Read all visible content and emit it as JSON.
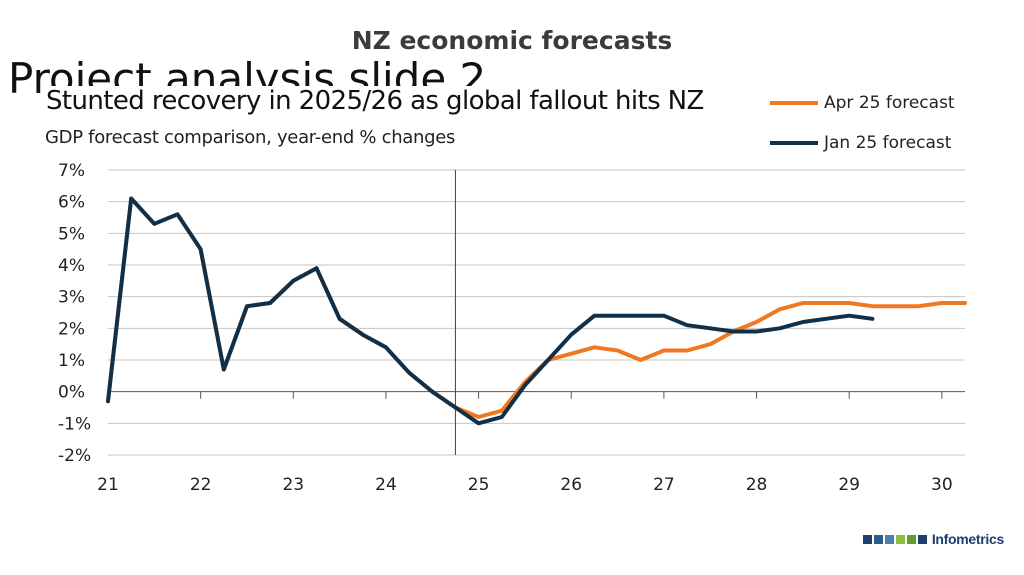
{
  "slide": {
    "heading": "NZ economic forecasts",
    "obscured_title": "Project analysis slide 2"
  },
  "brand": {
    "name": "Infometrics",
    "logo_colors": [
      "#1f3f6e",
      "#2d5d8f",
      "#4a7fb0",
      "#8dbd3a",
      "#5ea033",
      "#1f3f6e"
    ]
  },
  "chart_data": {
    "type": "line",
    "title": "Stunted recovery in 2025/26 as global fallout hits NZ",
    "subtitle": "GDP forecast comparison, year-end % changes",
    "xlabel": "",
    "ylabel": "",
    "ylim": [
      -2,
      7
    ],
    "xlim": [
      21,
      30.25
    ],
    "yticks": [
      "7%",
      "6%",
      "5%",
      "4%",
      "3%",
      "2%",
      "1%",
      "0%",
      "-1%",
      "-2%"
    ],
    "ytick_values": [
      7,
      6,
      5,
      4,
      3,
      2,
      1,
      0,
      -1,
      -2
    ],
    "xticks": [
      "21",
      "22",
      "23",
      "24",
      "25",
      "26",
      "27",
      "28",
      "29",
      "30"
    ],
    "xtick_values": [
      21,
      22,
      23,
      24,
      25,
      26,
      27,
      28,
      29,
      30
    ],
    "grid": true,
    "legend_position": "top-right",
    "marker_line_x": 24.75,
    "series": [
      {
        "name": "Apr 25 forecast",
        "color": "#f07820",
        "x": [
          21,
          21.25,
          21.5,
          21.75,
          22,
          22.25,
          22.5,
          22.75,
          23,
          23.25,
          23.5,
          23.75,
          24,
          24.25,
          24.5,
          24.75,
          25,
          25.25,
          25.5,
          25.75,
          26,
          26.25,
          26.5,
          26.75,
          27,
          27.25,
          27.5,
          27.75,
          28,
          28.25,
          28.5,
          28.75,
          29,
          29.25,
          29.5,
          29.75,
          30,
          30.25
        ],
        "values": [
          -0.3,
          6.1,
          5.3,
          5.6,
          4.5,
          0.7,
          2.7,
          2.8,
          3.5,
          3.9,
          2.3,
          1.8,
          1.4,
          0.6,
          0.0,
          -0.5,
          -0.8,
          -0.6,
          0.3,
          1.0,
          1.2,
          1.4,
          1.3,
          1.0,
          1.3,
          1.3,
          1.5,
          1.9,
          2.2,
          2.6,
          2.8,
          2.8,
          2.8,
          2.7,
          2.7,
          2.7,
          2.8,
          2.8
        ]
      },
      {
        "name": "Jan 25 forecast",
        "color": "#10304a",
        "x": [
          21,
          21.25,
          21.5,
          21.75,
          22,
          22.25,
          22.5,
          22.75,
          23,
          23.25,
          23.5,
          23.75,
          24,
          24.25,
          24.5,
          24.75,
          25,
          25.25,
          25.5,
          25.75,
          26,
          26.25,
          26.5,
          26.75,
          27,
          27.25,
          27.5,
          27.75,
          28,
          28.25,
          28.5,
          28.75,
          29,
          29.25
        ],
        "values": [
          -0.3,
          6.1,
          5.3,
          5.6,
          4.5,
          0.7,
          2.7,
          2.8,
          3.5,
          3.9,
          2.3,
          1.8,
          1.4,
          0.6,
          0.0,
          -0.5,
          -1.0,
          -0.8,
          0.2,
          1.0,
          1.8,
          2.4,
          2.4,
          2.4,
          2.4,
          2.1,
          2.0,
          1.9,
          1.9,
          2.0,
          2.2,
          2.3,
          2.4,
          2.3
        ]
      }
    ]
  }
}
